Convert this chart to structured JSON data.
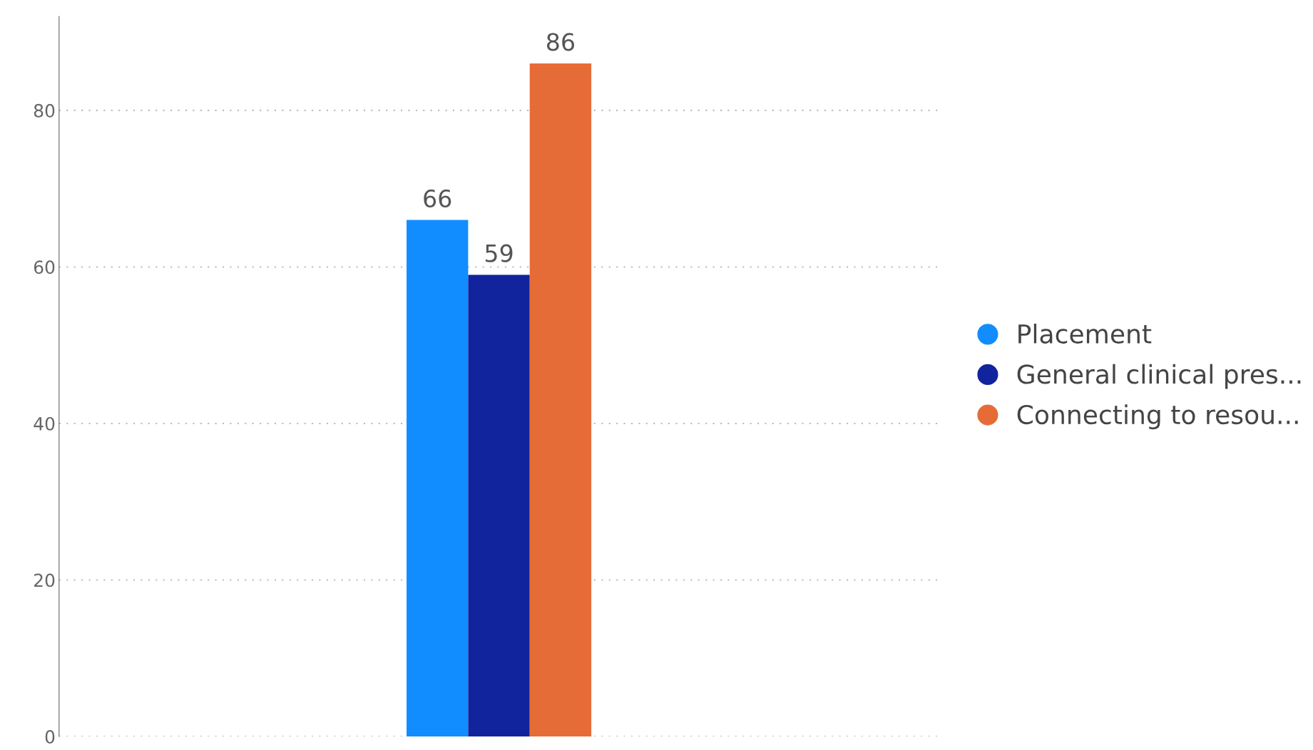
{
  "chart_data": {
    "type": "bar",
    "categories": [
      null
    ],
    "series": [
      {
        "name": "Placement",
        "color": "#118dff",
        "values": [
          66
        ]
      },
      {
        "name": "General clinical pres...",
        "color": "#12239e",
        "values": [
          59
        ]
      },
      {
        "name": "Connecting to resou...",
        "color": "#e66c37",
        "values": [
          86
        ]
      }
    ],
    "ylim": [
      0,
      92
    ],
    "yticks": [
      0,
      20,
      40,
      60,
      80
    ],
    "grid": "y",
    "legend": "right",
    "data_labels": true,
    "marker": "circle"
  }
}
